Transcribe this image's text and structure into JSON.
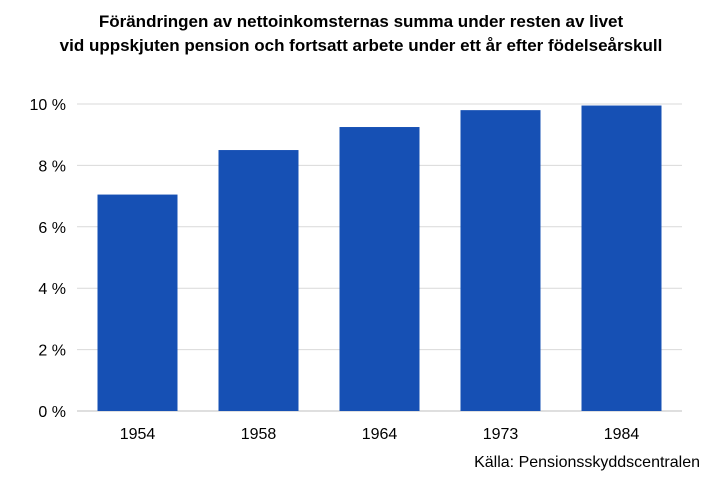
{
  "chart_data": {
    "type": "bar",
    "title_lines": [
      "Förändringen av nettoinkomsternas summa under resten av livet",
      "vid uppskjuten pension och fortsatt arbete under ett år efter födelseårskull"
    ],
    "categories": [
      "1954",
      "1958",
      "1964",
      "1973",
      "1984"
    ],
    "values": [
      7.05,
      8.5,
      9.25,
      9.8,
      9.95
    ],
    "value_unit": "%",
    "ylim": [
      0,
      10
    ],
    "yticks": [
      0,
      2,
      4,
      6,
      8,
      10
    ],
    "ytick_labels": [
      "0 %",
      "2 %",
      "4 %",
      "6 %",
      "8 %",
      "10 %"
    ],
    "xlabel": "",
    "ylabel": "",
    "grid": true,
    "bar_color": "#1650b4",
    "gridline_color": "#d9d9d9",
    "source": "Källa: Pensionsskyddscentralen"
  }
}
